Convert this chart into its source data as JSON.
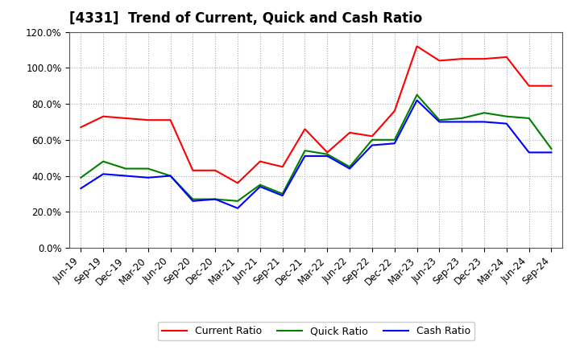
{
  "title": "[4331]  Trend of Current, Quick and Cash Ratio",
  "x_labels": [
    "Jun-19",
    "Sep-19",
    "Dec-19",
    "Mar-20",
    "Jun-20",
    "Sep-20",
    "Dec-20",
    "Mar-21",
    "Jun-21",
    "Sep-21",
    "Dec-21",
    "Mar-22",
    "Jun-22",
    "Sep-22",
    "Dec-22",
    "Mar-23",
    "Jun-23",
    "Sep-23",
    "Dec-23",
    "Mar-24",
    "Jun-24",
    "Sep-24"
  ],
  "current_ratio": [
    67,
    73,
    72,
    71,
    71,
    43,
    43,
    36,
    48,
    45,
    66,
    53,
    64,
    62,
    76,
    112,
    104,
    105,
    105,
    106,
    90,
    90
  ],
  "quick_ratio": [
    39,
    48,
    44,
    44,
    40,
    27,
    27,
    26,
    35,
    30,
    54,
    52,
    45,
    60,
    60,
    85,
    71,
    72,
    75,
    73,
    72,
    55
  ],
  "cash_ratio": [
    33,
    41,
    40,
    39,
    40,
    26,
    27,
    22,
    34,
    29,
    51,
    51,
    44,
    57,
    58,
    82,
    70,
    70,
    70,
    69,
    53,
    53
  ],
  "current_color": "#ff0000",
  "quick_color": "#008000",
  "cash_color": "#0000ff",
  "line_width": 1.5,
  "ylim": [
    0,
    120
  ],
  "yticks": [
    0,
    20,
    40,
    60,
    80,
    100,
    120
  ],
  "ytick_labels": [
    "0.0%",
    "20.0%",
    "40.0%",
    "60.0%",
    "80.0%",
    "100.0%",
    "120.0%"
  ],
  "bg_color": "#ffffff",
  "plot_bg_color": "#ffffff",
  "grid_color": "#aaaaaa",
  "legend_current": "Current Ratio",
  "legend_quick": "Quick Ratio",
  "legend_cash": "Cash Ratio",
  "title_fontsize": 12,
  "tick_fontsize": 8.5,
  "legend_fontsize": 9
}
